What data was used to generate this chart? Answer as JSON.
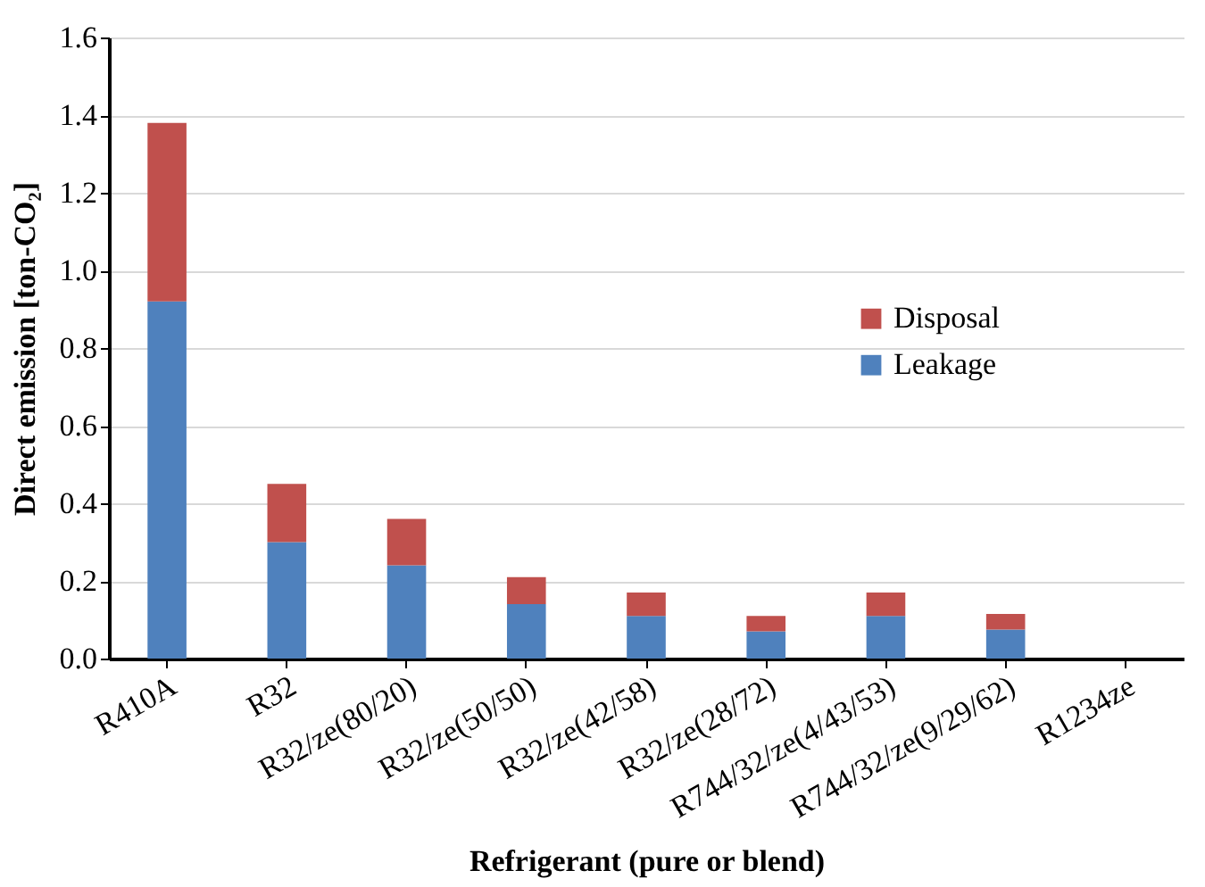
{
  "chart_data": {
    "type": "bar",
    "stacked": true,
    "xlabel": "Refrigerant (pure or blend)",
    "ylabel": "Direct emission [ton-CO₂]",
    "categories": [
      "R410A",
      "R32",
      "R32/ze(80/20)",
      "R32/ze(50/50)",
      "R32/ze(42/58)",
      "R32/ze(28/72)",
      "R744/32/ze(4/43/53)",
      "R744/32/ze(9/29/62)",
      "R1234ze"
    ],
    "series": [
      {
        "name": "Leakage",
        "color": "#4f81bd",
        "values": [
          0.92,
          0.3,
          0.24,
          0.14,
          0.11,
          0.07,
          0.11,
          0.075,
          0
        ]
      },
      {
        "name": "Disposal",
        "color": "#c0504d",
        "values": [
          0.46,
          0.15,
          0.12,
          0.07,
          0.06,
          0.04,
          0.06,
          0.04,
          0
        ]
      }
    ],
    "ylim": [
      0,
      1.6
    ],
    "yticks": [
      {
        "value": 0,
        "label": "0.0"
      },
      {
        "value": 0.2,
        "label": "0.2"
      },
      {
        "value": 0.4,
        "label": "0.4"
      },
      {
        "value": 0.6,
        "label": "0.6"
      },
      {
        "value": 0.8,
        "label": "0.8"
      },
      {
        "value": 1,
        "label": "1.0"
      },
      {
        "value": 1.2,
        "label": "1.2"
      },
      {
        "value": 1.4,
        "label": "1.4"
      },
      {
        "value": 1.6,
        "label": "1.6"
      }
    ],
    "grid": "y",
    "legend": "right"
  }
}
